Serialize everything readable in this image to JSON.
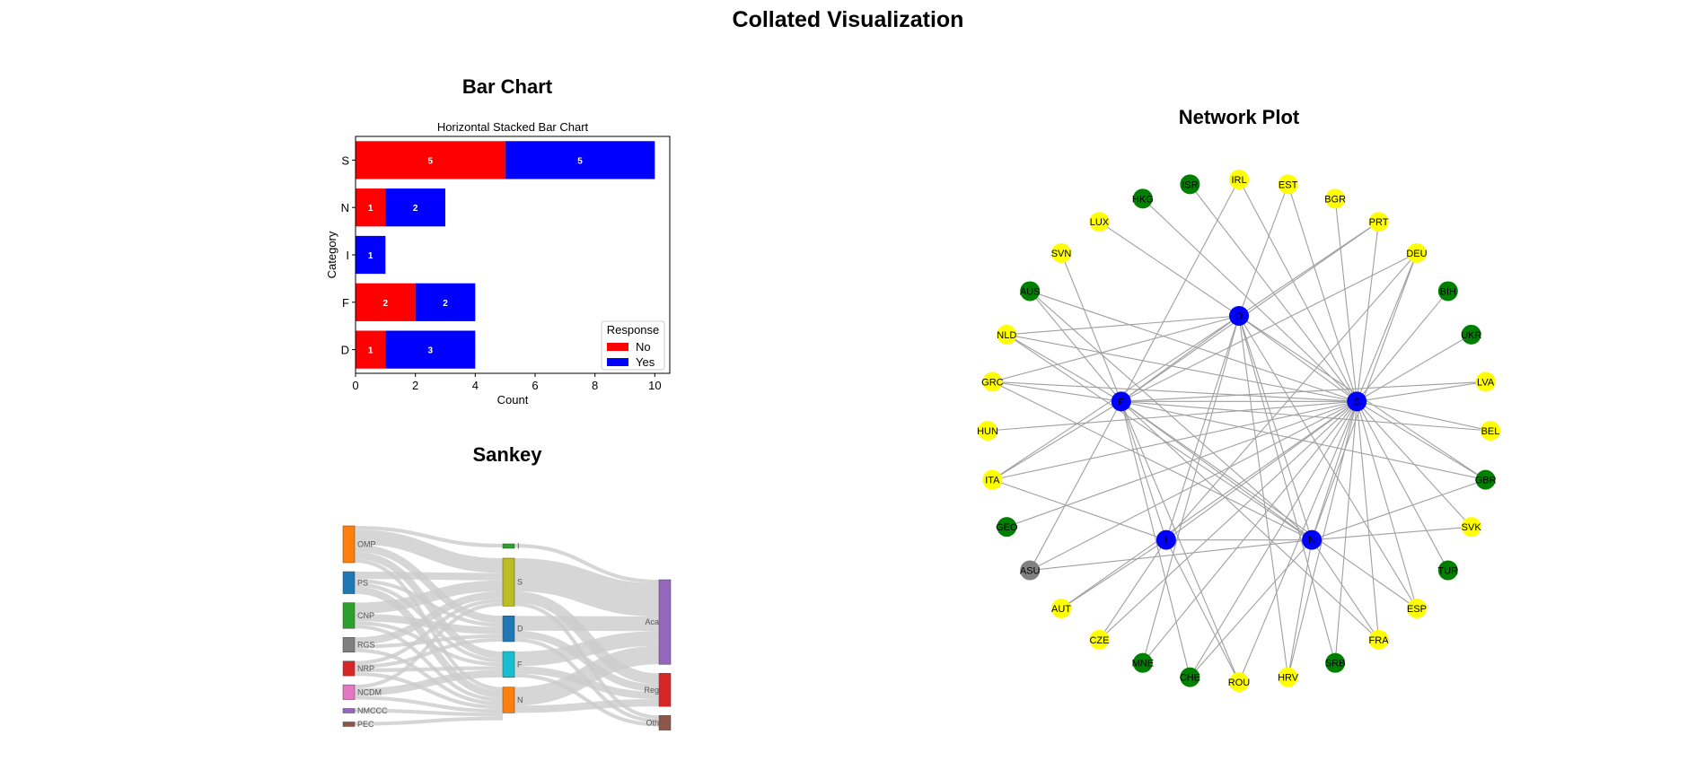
{
  "page": {
    "title": "Collated Visualization"
  },
  "panels": {
    "bar": "Bar Chart",
    "sankey": "Sankey",
    "network": "Network Plot"
  },
  "chart_data": [
    {
      "type": "bar",
      "orientation": "horizontal",
      "stacked": true,
      "title": "Horizontal Stacked Bar Chart",
      "xlabel": "Count",
      "ylabel": "Category",
      "categories": [
        "S",
        "N",
        "I",
        "F",
        "D"
      ],
      "series": [
        {
          "name": "No",
          "values": [
            5,
            1,
            0,
            2,
            1
          ],
          "color": "#ff0000"
        },
        {
          "name": "Yes",
          "values": [
            5,
            2,
            1,
            2,
            3
          ],
          "color": "#0000ff"
        }
      ],
      "xlim": [
        0,
        10.5
      ],
      "xticks": [
        0,
        2,
        4,
        6,
        8,
        10
      ],
      "legend": {
        "title": "Response",
        "position": "lower-right"
      }
    },
    {
      "type": "sankey",
      "left_nodes": [
        {
          "name": "OMP",
          "value": 10,
          "color": "#ff7f0e"
        },
        {
          "name": "PS",
          "value": 6,
          "color": "#1f77b4"
        },
        {
          "name": "CNP",
          "value": 7,
          "color": "#2ca02c"
        },
        {
          "name": "RGS",
          "value": 4,
          "color": "#7f7f7f"
        },
        {
          "name": "NRP",
          "value": 4,
          "color": "#d62728"
        },
        {
          "name": "NCDM",
          "value": 4,
          "color": "#e377c2"
        },
        {
          "name": "NMCCC",
          "value": 1,
          "color": "#9467bd"
        },
        {
          "name": "PEC",
          "value": 1,
          "color": "#8c564b"
        }
      ],
      "middle_nodes": [
        {
          "name": "I",
          "value": 1,
          "color": "#2ca02c"
        },
        {
          "name": "S",
          "value": 13,
          "color": "#bcbd22"
        },
        {
          "name": "D",
          "value": 7,
          "color": "#1f77b4"
        },
        {
          "name": "F",
          "value": 7,
          "color": "#17becf"
        },
        {
          "name": "N",
          "value": 7,
          "color": "#ff7f0e"
        }
      ],
      "right_nodes": [
        {
          "name": "Aca",
          "value": 23,
          "color": "#9467bd"
        },
        {
          "name": "Reg",
          "value": 9,
          "color": "#d62728"
        },
        {
          "name": "Oth",
          "value": 4,
          "color": "#8c564b"
        }
      ],
      "links": [
        {
          "source": "OMP",
          "target": "I",
          "value": 1
        },
        {
          "source": "OMP",
          "target": "S",
          "value": 4
        },
        {
          "source": "OMP",
          "target": "D",
          "value": 2
        },
        {
          "source": "OMP",
          "target": "F",
          "value": 2
        },
        {
          "source": "OMP",
          "target": "N",
          "value": 1
        },
        {
          "source": "PS",
          "target": "S",
          "value": 2
        },
        {
          "source": "PS",
          "target": "D",
          "value": 1
        },
        {
          "source": "PS",
          "target": "F",
          "value": 1
        },
        {
          "source": "PS",
          "target": "N",
          "value": 2
        },
        {
          "source": "CNP",
          "target": "S",
          "value": 3
        },
        {
          "source": "CNP",
          "target": "D",
          "value": 2
        },
        {
          "source": "CNP",
          "target": "F",
          "value": 1
        },
        {
          "source": "CNP",
          "target": "N",
          "value": 1
        },
        {
          "source": "RGS",
          "target": "S",
          "value": 2
        },
        {
          "source": "RGS",
          "target": "D",
          "value": 1
        },
        {
          "source": "RGS",
          "target": "N",
          "value": 1
        },
        {
          "source": "NRP",
          "target": "S",
          "value": 1
        },
        {
          "source": "NRP",
          "target": "D",
          "value": 1
        },
        {
          "source": "NRP",
          "target": "F",
          "value": 1
        },
        {
          "source": "NRP",
          "target": "N",
          "value": 1
        },
        {
          "source": "NCDM",
          "target": "S",
          "value": 1
        },
        {
          "source": "NCDM",
          "target": "F",
          "value": 2
        },
        {
          "source": "NCDM",
          "target": "N",
          "value": 1
        },
        {
          "source": "NMCCC",
          "target": "N",
          "value": 1
        },
        {
          "source": "PEC",
          "target": "N",
          "value": 1
        },
        {
          "source": "I",
          "target": "Aca",
          "value": 1
        },
        {
          "source": "S",
          "target": "Aca",
          "value": 9
        },
        {
          "source": "S",
          "target": "Reg",
          "value": 3
        },
        {
          "source": "S",
          "target": "Oth",
          "value": 1
        },
        {
          "source": "D",
          "target": "Aca",
          "value": 4
        },
        {
          "source": "D",
          "target": "Reg",
          "value": 2
        },
        {
          "source": "D",
          "target": "Oth",
          "value": 1
        },
        {
          "source": "F",
          "target": "Aca",
          "value": 4
        },
        {
          "source": "F",
          "target": "Reg",
          "value": 2
        },
        {
          "source": "F",
          "target": "Oth",
          "value": 1
        },
        {
          "source": "N",
          "target": "Aca",
          "value": 5
        },
        {
          "source": "N",
          "target": "Reg",
          "value": 2
        }
      ]
    },
    {
      "type": "network",
      "hubs": [
        {
          "name": "D",
          "label": "D"
        },
        {
          "name": "F",
          "label": "F"
        },
        {
          "name": "S",
          "label": "S"
        },
        {
          "name": "I",
          "label": "I"
        },
        {
          "name": "N",
          "label": "N"
        }
      ],
      "nodes": [
        {
          "name": "IRL",
          "group": "yellow"
        },
        {
          "name": "EST",
          "group": "yellow"
        },
        {
          "name": "BGR",
          "group": "yellow"
        },
        {
          "name": "PRT",
          "group": "yellow"
        },
        {
          "name": "DEU",
          "group": "yellow"
        },
        {
          "name": "BIH",
          "group": "green"
        },
        {
          "name": "UKR",
          "group": "green"
        },
        {
          "name": "LVA",
          "group": "yellow"
        },
        {
          "name": "BEL",
          "group": "yellow"
        },
        {
          "name": "GBR",
          "group": "green"
        },
        {
          "name": "SVK",
          "group": "yellow"
        },
        {
          "name": "TUR",
          "group": "green"
        },
        {
          "name": "ESP",
          "group": "yellow"
        },
        {
          "name": "FRA",
          "group": "yellow"
        },
        {
          "name": "SRB",
          "group": "green"
        },
        {
          "name": "HRV",
          "group": "yellow"
        },
        {
          "name": "ROU",
          "group": "yellow"
        },
        {
          "name": "CHE",
          "group": "green"
        },
        {
          "name": "MNE",
          "group": "green"
        },
        {
          "name": "CZE",
          "group": "yellow"
        },
        {
          "name": "AUT",
          "group": "yellow"
        },
        {
          "name": "ASU",
          "group": "gray"
        },
        {
          "name": "GEO",
          "group": "green"
        },
        {
          "name": "ITA",
          "group": "yellow"
        },
        {
          "name": "HUN",
          "group": "yellow"
        },
        {
          "name": "GRC",
          "group": "yellow"
        },
        {
          "name": "NLD",
          "group": "yellow"
        },
        {
          "name": "AUS",
          "group": "green"
        },
        {
          "name": "SVN",
          "group": "yellow"
        },
        {
          "name": "LUX",
          "group": "yellow"
        },
        {
          "name": "HKG",
          "group": "green"
        },
        {
          "name": "ISR",
          "group": "green"
        }
      ],
      "edges": [
        [
          "S",
          "IRL"
        ],
        [
          "S",
          "EST"
        ],
        [
          "S",
          "BGR"
        ],
        [
          "S",
          "PRT"
        ],
        [
          "S",
          "DEU"
        ],
        [
          "S",
          "BIH"
        ],
        [
          "S",
          "UKR"
        ],
        [
          "S",
          "LVA"
        ],
        [
          "S",
          "BEL"
        ],
        [
          "S",
          "GBR"
        ],
        [
          "S",
          "SVK"
        ],
        [
          "S",
          "TUR"
        ],
        [
          "S",
          "ESP"
        ],
        [
          "S",
          "FRA"
        ],
        [
          "S",
          "SRB"
        ],
        [
          "S",
          "HRV"
        ],
        [
          "S",
          "ROU"
        ],
        [
          "S",
          "CHE"
        ],
        [
          "S",
          "MNE"
        ],
        [
          "S",
          "CZE"
        ],
        [
          "S",
          "AUT"
        ],
        [
          "S",
          "ASU"
        ],
        [
          "S",
          "GEO"
        ],
        [
          "S",
          "ITA"
        ],
        [
          "S",
          "HUN"
        ],
        [
          "S",
          "GRC"
        ],
        [
          "S",
          "NLD"
        ],
        [
          "S",
          "AUS"
        ],
        [
          "S",
          "HKG"
        ],
        [
          "S",
          "ISR"
        ],
        [
          "F",
          "IRL"
        ],
        [
          "F",
          "PRT"
        ],
        [
          "F",
          "DEU"
        ],
        [
          "F",
          "GRC"
        ],
        [
          "F",
          "NLD"
        ],
        [
          "F",
          "AUS"
        ],
        [
          "F",
          "SVN"
        ],
        [
          "F",
          "LVA"
        ],
        [
          "F",
          "BEL"
        ],
        [
          "F",
          "GBR"
        ],
        [
          "F",
          "ESP"
        ],
        [
          "F",
          "FRA"
        ],
        [
          "F",
          "ROU"
        ],
        [
          "F",
          "CHE"
        ],
        [
          "F",
          "ASU"
        ],
        [
          "F",
          "ITA"
        ],
        [
          "D",
          "EST"
        ],
        [
          "D",
          "PRT"
        ],
        [
          "D",
          "GBR"
        ],
        [
          "D",
          "ESP"
        ],
        [
          "D",
          "SRB"
        ],
        [
          "D",
          "HRV"
        ],
        [
          "D",
          "MNE"
        ],
        [
          "D",
          "ITA"
        ],
        [
          "D",
          "NLD"
        ],
        [
          "D",
          "LUX"
        ],
        [
          "D",
          "GRC"
        ],
        [
          "N",
          "DEU"
        ],
        [
          "N",
          "SVK"
        ],
        [
          "N",
          "GBR"
        ],
        [
          "N",
          "FRA"
        ],
        [
          "N",
          "HRV"
        ],
        [
          "N",
          "CHE"
        ],
        [
          "N",
          "ASU"
        ],
        [
          "N",
          "NLD"
        ],
        [
          "N",
          "AUS"
        ],
        [
          "N",
          "GRC"
        ],
        [
          "I",
          "DEU"
        ],
        [
          "I",
          "AUT"
        ],
        [
          "I",
          "CZE"
        ],
        [
          "I",
          "ITA"
        ],
        [
          "I",
          "ROU"
        ],
        [
          "S",
          "F"
        ],
        [
          "S",
          "D"
        ],
        [
          "S",
          "N"
        ],
        [
          "S",
          "I"
        ],
        [
          "F",
          "D"
        ],
        [
          "F",
          "N"
        ],
        [
          "F",
          "I"
        ],
        [
          "D",
          "N"
        ],
        [
          "D",
          "I"
        ],
        [
          "I",
          "N"
        ]
      ],
      "colors": {
        "yellow": "#ffff00",
        "green": "#008000",
        "gray": "#808080",
        "hub": "#0000ff",
        "edge": "#a0a0a0"
      }
    }
  ]
}
